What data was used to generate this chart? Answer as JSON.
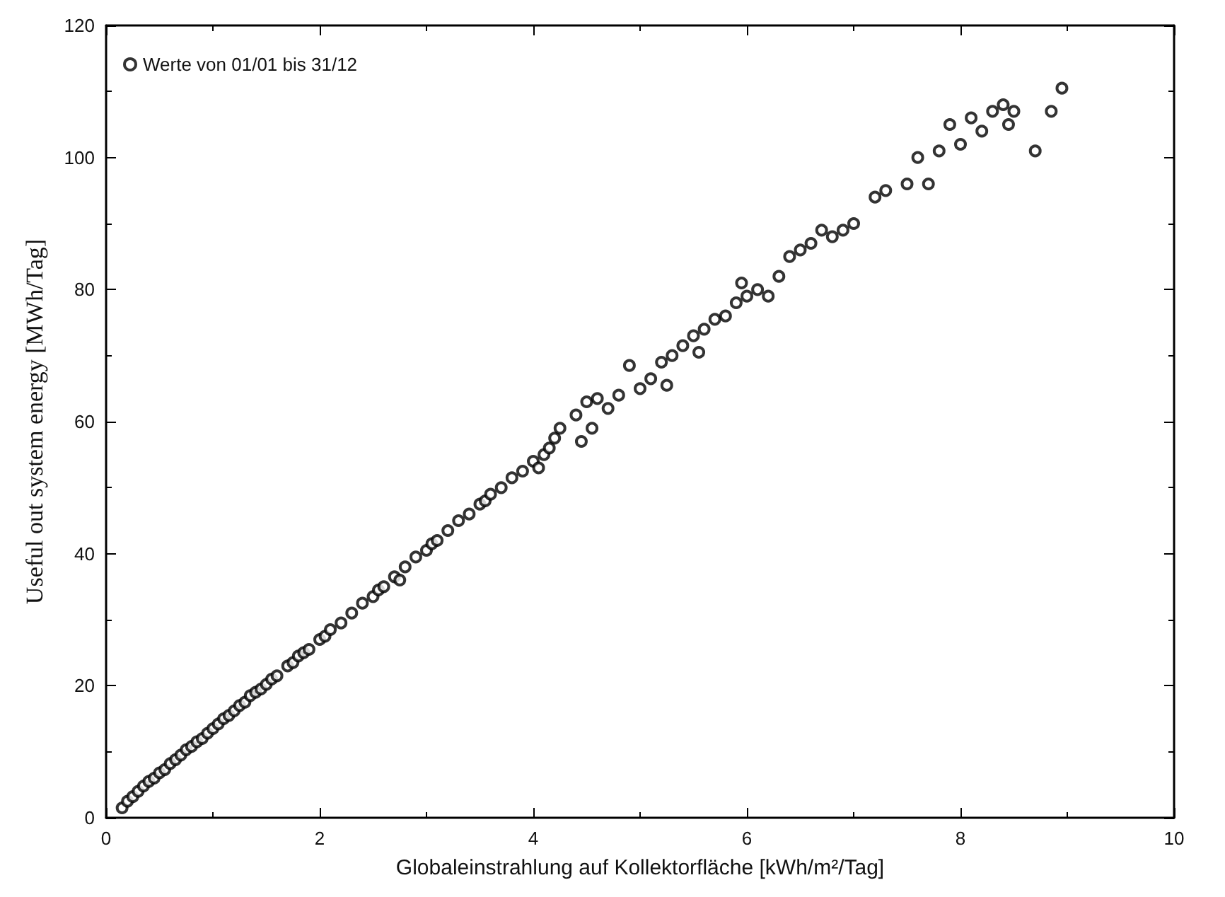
{
  "chart_data": {
    "type": "scatter",
    "xlabel": "Globaleinstrahlung auf Kollektorfläche [kWh/m²/Tag]",
    "ylabel": "Useful out system energy [MWh/Tag]",
    "xlim": [
      0,
      10
    ],
    "ylim": [
      0,
      120
    ],
    "xticks": [
      0,
      2,
      4,
      6,
      8,
      10
    ],
    "yticks": [
      0,
      20,
      40,
      60,
      80,
      100,
      120
    ],
    "grid": false,
    "legend": "top left",
    "marker": "circle",
    "series": [
      {
        "name": "Werte von 01/01 bis 31/12",
        "color": "#000000",
        "x": [
          0.15,
          0.2,
          0.25,
          0.3,
          0.35,
          0.4,
          0.45,
          0.5,
          0.55,
          0.6,
          0.65,
          0.7,
          0.75,
          0.8,
          0.85,
          0.9,
          0.95,
          1.0,
          1.05,
          1.1,
          1.15,
          1.2,
          1.25,
          1.3,
          1.35,
          1.4,
          1.45,
          1.5,
          1.55,
          1.6,
          1.7,
          1.75,
          1.8,
          1.85,
          1.9,
          2.0,
          2.05,
          2.1,
          2.2,
          2.3,
          2.4,
          2.5,
          2.55,
          2.6,
          2.7,
          2.75,
          2.8,
          2.9,
          3.0,
          3.05,
          3.1,
          3.2,
          3.3,
          3.4,
          3.5,
          3.55,
          3.6,
          3.7,
          3.8,
          3.9,
          4.0,
          4.05,
          4.1,
          4.15,
          4.2,
          4.25,
          4.4,
          4.45,
          4.5,
          4.55,
          4.6,
          4.7,
          4.8,
          4.9,
          5.0,
          5.1,
          5.2,
          5.25,
          5.3,
          5.4,
          5.5,
          5.55,
          5.6,
          5.7,
          5.8,
          5.9,
          5.95,
          6.0,
          6.1,
          6.2,
          6.3,
          6.4,
          6.5,
          6.6,
          6.7,
          6.8,
          6.9,
          7.0,
          7.2,
          7.3,
          7.5,
          7.6,
          7.7,
          7.8,
          7.9,
          8.0,
          8.1,
          8.2,
          8.3,
          8.4,
          8.45,
          8.5,
          8.7,
          8.85,
          8.95
        ],
        "values": [
          1.5,
          2.5,
          3.2,
          4,
          4.8,
          5.5,
          6,
          6.8,
          7.3,
          8.2,
          8.8,
          9.5,
          10.3,
          10.8,
          11.5,
          12,
          12.8,
          13.5,
          14.2,
          15,
          15.5,
          16.2,
          17,
          17.5,
          18.5,
          19,
          19.5,
          20.2,
          21,
          21.5,
          23,
          23.5,
          24.5,
          25,
          25.5,
          27,
          27.5,
          28.5,
          29.5,
          31,
          32.5,
          33.5,
          34.5,
          35,
          36.5,
          36,
          38,
          39.5,
          40.5,
          41.5,
          42,
          43.5,
          45,
          46,
          47.5,
          48,
          49,
          50,
          51.5,
          52.5,
          54,
          53,
          55,
          56,
          57.5,
          59,
          61,
          57,
          63,
          59,
          63.5,
          62,
          64,
          68.5,
          65,
          66.5,
          69,
          65.5,
          70,
          71.5,
          73,
          70.5,
          74,
          75.5,
          76,
          78,
          81,
          79,
          80,
          79,
          82,
          85,
          86,
          87,
          89,
          88,
          89,
          90,
          94,
          95,
          96,
          100,
          96,
          101,
          105,
          102,
          106,
          104,
          107,
          108,
          105,
          107,
          101,
          107,
          110.5
        ]
      }
    ]
  }
}
